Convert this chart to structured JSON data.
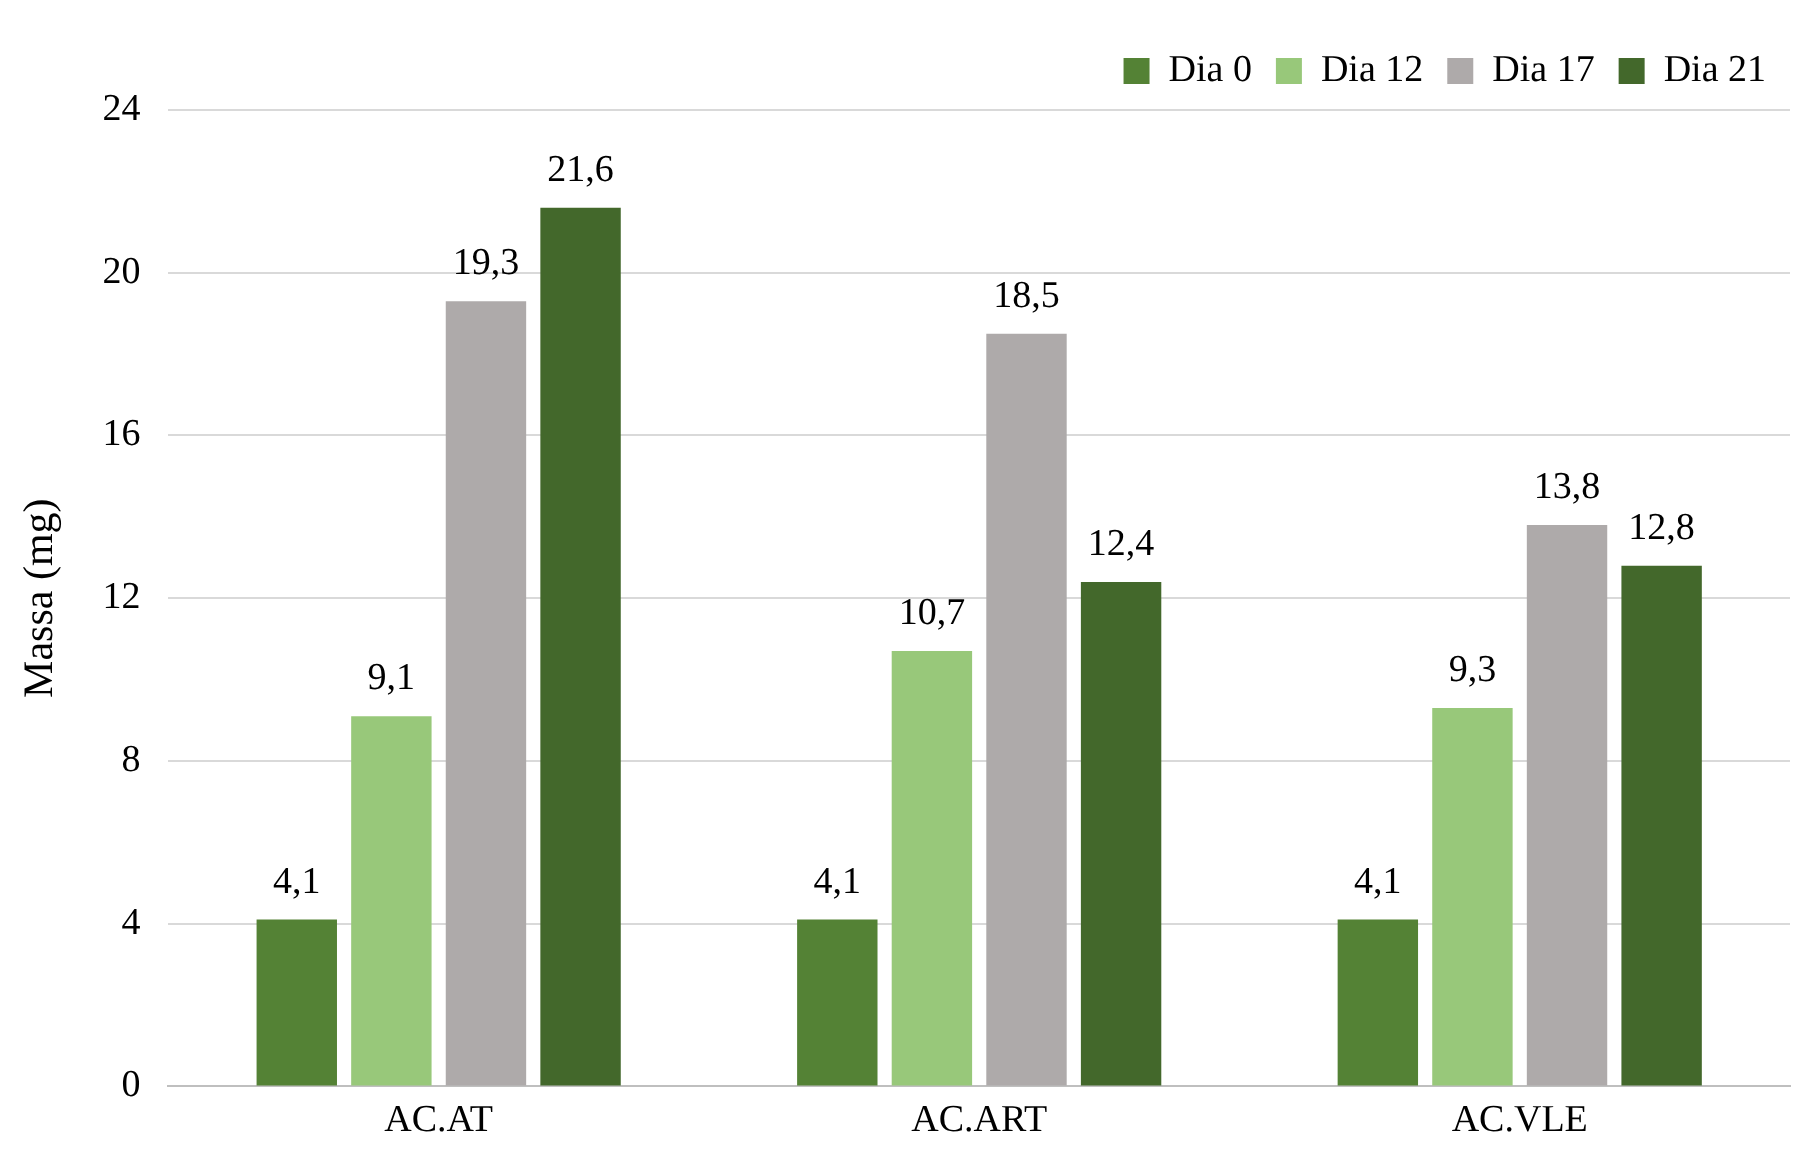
{
  "chart_data": {
    "type": "bar",
    "ylabel": "Massa (mg)",
    "categories": [
      "AC.AT",
      "AC.ART",
      "AC.VLE"
    ],
    "series": [
      {
        "name": "Dia 0",
        "color": "#548235",
        "values": [
          4.1,
          4.1,
          4.1
        ],
        "value_labels": [
          "4,1",
          "4,1",
          "4,1"
        ]
      },
      {
        "name": "Dia 12",
        "color": "#98c87a",
        "values": [
          9.1,
          10.7,
          9.3
        ],
        "value_labels": [
          "9,1",
          "10,7",
          "9,3"
        ]
      },
      {
        "name": "Dia 17",
        "color": "#aeaaaa",
        "values": [
          19.3,
          18.5,
          13.8
        ],
        "value_labels": [
          "19,3",
          "18,5",
          "13,8"
        ]
      },
      {
        "name": "Dia 21",
        "color": "#43682b",
        "values": [
          21.6,
          12.4,
          12.8
        ],
        "value_labels": [
          "21,6",
          "12,4",
          "12,8"
        ]
      }
    ],
    "ylim": [
      0,
      24
    ],
    "yticks": [
      0,
      4,
      8,
      12,
      16,
      20,
      24
    ],
    "grid": "y",
    "legend": "top right"
  }
}
